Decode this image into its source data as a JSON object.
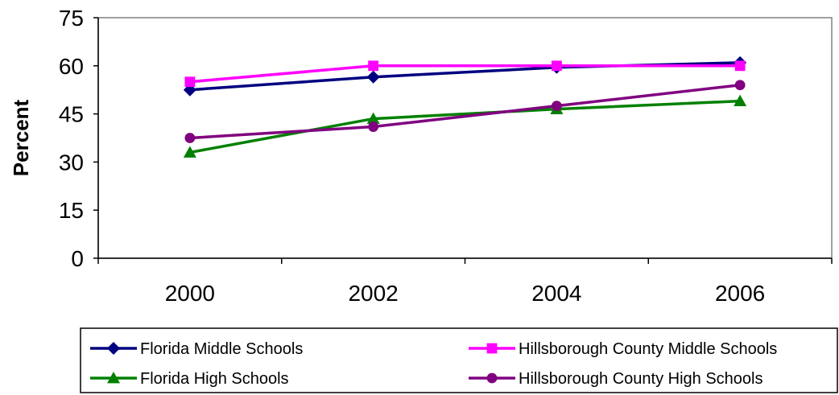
{
  "chart_data": {
    "type": "line",
    "title": "",
    "xlabel": "",
    "ylabel": "Percent",
    "categories": [
      "2000",
      "2002",
      "2004",
      "2006"
    ],
    "ylim": [
      0,
      75
    ],
    "yticks": [
      "0",
      "15",
      "30",
      "45",
      "60",
      "75"
    ],
    "grid": false,
    "legend_position": "bottom",
    "series": [
      {
        "name": "Florida Middle Schools",
        "color": "#000080",
        "marker": "diamond",
        "values": [
          52.5,
          56.5,
          59.5,
          61
        ]
      },
      {
        "name": "Hillsborough County Middle Schools",
        "color": "#FF00FF",
        "marker": "square",
        "values": [
          55,
          60,
          60,
          60
        ]
      },
      {
        "name": "Florida High Schools",
        "color": "#008000",
        "marker": "triangle",
        "values": [
          33,
          43.5,
          46.5,
          49
        ]
      },
      {
        "name": "Hillsborough County High Schools",
        "color": "#800080",
        "marker": "circle",
        "values": [
          37.5,
          41,
          47.5,
          54
        ]
      }
    ]
  }
}
